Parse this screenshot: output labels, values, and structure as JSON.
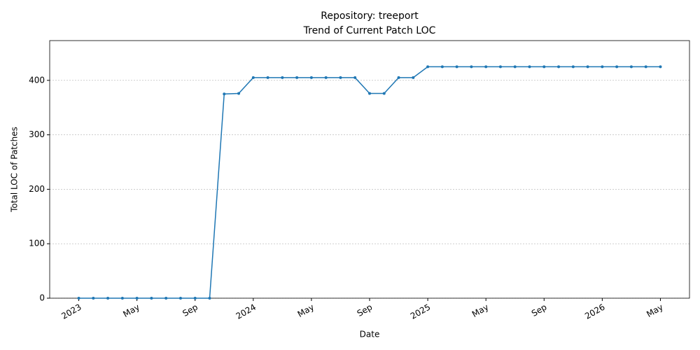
{
  "chart_data": {
    "type": "line",
    "title": "Repository: treeport",
    "subtitle": "Trend of Current Patch LOC",
    "xlabel": "Date",
    "ylabel": "Total LOC of Patches",
    "x": [
      "2023-01",
      "2023-02",
      "2023-03",
      "2023-04",
      "2023-05",
      "2023-06",
      "2023-07",
      "2023-08",
      "2023-09",
      "2023-10",
      "2023-11",
      "2023-12",
      "2024-01",
      "2024-02",
      "2024-03",
      "2024-04",
      "2024-05",
      "2024-06",
      "2024-07",
      "2024-08",
      "2024-09",
      "2024-10",
      "2024-11",
      "2024-12",
      "2025-01",
      "2025-02",
      "2025-03",
      "2025-04",
      "2025-05",
      "2025-06",
      "2025-07",
      "2025-08",
      "2025-09",
      "2025-10",
      "2025-11",
      "2025-12",
      "2026-01",
      "2026-02",
      "2026-03",
      "2026-04",
      "2026-05"
    ],
    "series": [
      {
        "color": "#1f77b4",
        "values": [
          0,
          0,
          0,
          0,
          0,
          0,
          0,
          0,
          0,
          0,
          375,
          376,
          405,
          405,
          405,
          405,
          405,
          405,
          405,
          405,
          376,
          376,
          405,
          405,
          425,
          425,
          425,
          425,
          425,
          425,
          425,
          425,
          425,
          425,
          425,
          425,
          425,
          425,
          425,
          425,
          425
        ]
      }
    ],
    "xlim": [
      "2022-11",
      "2026-07"
    ],
    "xticks": [
      {
        "value": "2023-01",
        "label": "2023"
      },
      {
        "value": "2023-05",
        "label": "May"
      },
      {
        "value": "2023-09",
        "label": "Sep"
      },
      {
        "value": "2024-01",
        "label": "2024"
      },
      {
        "value": "2024-05",
        "label": "May"
      },
      {
        "value": "2024-09",
        "label": "Sep"
      },
      {
        "value": "2025-01",
        "label": "2025"
      },
      {
        "value": "2025-05",
        "label": "May"
      },
      {
        "value": "2025-09",
        "label": "Sep"
      },
      {
        "value": "2026-01",
        "label": "2026"
      },
      {
        "value": "2026-05",
        "label": "May"
      }
    ],
    "ylim": [
      0,
      473
    ],
    "yticks": [
      0,
      100,
      200,
      300,
      400
    ],
    "grid": true
  }
}
